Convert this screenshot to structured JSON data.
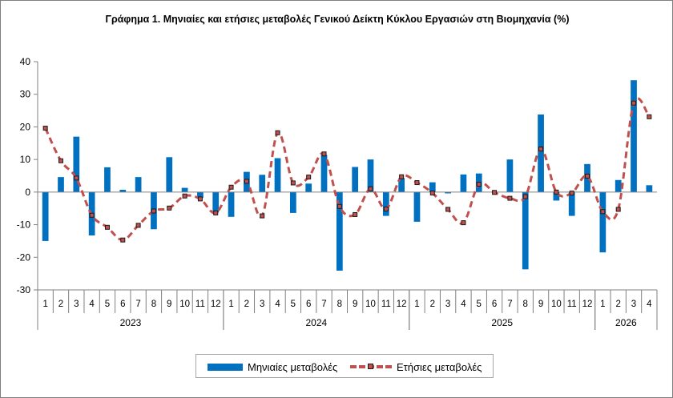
{
  "chart_data": {
    "type": "bar",
    "title": "Γράφημα 1. Μηνιαίες και ετήσιες μεταβολές  Γενικού Δείκτη Κύκλου Εργασιών στη Βιομηχανία (%)",
    "xlabel": "",
    "ylabel": "",
    "ylim": [
      -30,
      40
    ],
    "yticks": [
      -30,
      -20,
      -10,
      0,
      10,
      20,
      30,
      40
    ],
    "grid": false,
    "legend_position": "bottom",
    "categories": [
      "1",
      "2",
      "3",
      "4",
      "5",
      "6",
      "7",
      "8",
      "9",
      "10",
      "11",
      "12",
      "1",
      "2",
      "3",
      "4",
      "5",
      "6",
      "7",
      "8",
      "9",
      "10",
      "11",
      "12",
      "1",
      "2",
      "3",
      "4",
      "5",
      "6",
      "7",
      "8",
      "9",
      "10",
      "11",
      "12",
      "1",
      "2",
      "3",
      "4"
    ],
    "groups": [
      {
        "label": "2023",
        "count": 12
      },
      {
        "label": "2024",
        "count": 12
      },
      {
        "label": "2025",
        "count": 12
      },
      {
        "label": "2026",
        "count": 4
      }
    ],
    "series": [
      {
        "name": "Μηνιαίες μεταβολές",
        "type": "bar",
        "color": "#0070c0",
        "values": [
          -15.0,
          4.6,
          17.0,
          -13.3,
          7.6,
          0.7,
          4.6,
          -11.4,
          10.7,
          1.3,
          -1.8,
          -6.3,
          -7.6,
          6.2,
          5.3,
          10.4,
          -6.4,
          2.6,
          11.4,
          -24.1,
          7.7,
          10.0,
          -7.3,
          4.3,
          -9.1,
          3.0,
          -0.4,
          5.4,
          5.7,
          0.0,
          10.0,
          -23.7,
          23.8,
          -2.6,
          -7.3,
          8.6,
          -18.5,
          3.7,
          34.3,
          2.1
        ]
      },
      {
        "name": "Ετήσιες μεταβολές",
        "type": "line",
        "color": "#c0504d",
        "values": [
          19.6,
          9.6,
          4.3,
          -7.1,
          -10.8,
          -14.7,
          -10.2,
          -5.8,
          -4.9,
          -1.2,
          -2.1,
          -6.4,
          1.5,
          3.3,
          -7.3,
          18.2,
          2.8,
          4.6,
          11.7,
          -4.4,
          -6.9,
          1.0,
          -5.2,
          4.7,
          2.9,
          -0.3,
          -5.3,
          -9.4,
          2.4,
          -0.1,
          -1.9,
          -1.4,
          13.2,
          0.0,
          -0.3,
          4.9,
          -6.0,
          -5.3,
          27.3,
          23.1
        ]
      }
    ]
  }
}
